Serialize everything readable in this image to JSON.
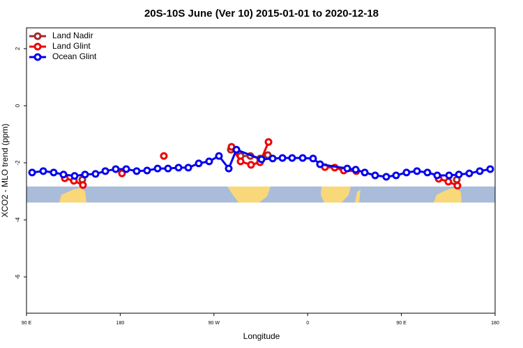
{
  "chart_data": {
    "type": "line",
    "title": "20S-10S June (Ver 10)   2015-01-01 to 2020-12-18",
    "x_label": "Longitude",
    "y_label": "XCO2 - MLO trend (ppm)",
    "xlim": [
      90,
      540
    ],
    "xticks": [
      {
        "value": 90,
        "label": "90 E"
      },
      {
        "value": 180,
        "label": "180"
      },
      {
        "value": 270,
        "label": "90 W"
      },
      {
        "value": 360,
        "label": "0"
      },
      {
        "value": 450,
        "label": "90 E"
      },
      {
        "value": 540,
        "label": "180"
      }
    ],
    "ylim": [
      -7.27,
      2.73
    ],
    "yticks": [
      -6,
      -4,
      -2,
      0,
      2
    ],
    "legend": "top-left",
    "series": [
      {
        "name": "Land Nadir",
        "color": "#a52a2a",
        "x": [
          143.6,
          null,
          286.2,
          295.6,
          305.0,
          314.3,
          321.7,
          null,
          503.2
        ],
        "values": [
          -2.59,
          null,
          -1.54,
          -1.76,
          -1.76,
          -1.85,
          -1.73,
          null,
          -2.59
        ]
      },
      {
        "name": "Land Glint",
        "color": "#ee0000",
        "x": [
          126.8,
          135.5,
          144.2,
          null,
          181.7,
          null,
          221.9,
          null,
          286.9,
          295.6,
          305.6,
          314.3,
          322.4,
          null,
          376.6,
          386.0,
          394.7,
          406.7,
          null,
          485.8,
          495.1,
          503.8
        ],
        "values": [
          -2.54,
          -2.63,
          -2.78,
          null,
          -2.37,
          null,
          -1.76,
          null,
          -1.44,
          -1.95,
          -2.07,
          -1.98,
          -1.27,
          null,
          -2.15,
          -2.17,
          -2.27,
          -2.29,
          null,
          -2.56,
          -2.66,
          -2.8
        ]
      },
      {
        "name": "Ocean Glint",
        "color": "#0000ee",
        "x": [
          95.4,
          106.1,
          116.1,
          125.5,
          136.2,
          146.2,
          156.3,
          165.7,
          175.7,
          185.8,
          195.8,
          205.8,
          215.9,
          225.9,
          236.0,
          245.4,
          255.4,
          265.4,
          274.8,
          284.2,
          291.6,
          315.7,
          326.4,
          335.8,
          345.1,
          355.2,
          365.2,
          371.9,
          398.0,
          406.1,
          414.8,
          424.8,
          435.5,
          444.9,
          454.9,
          465.0,
          475.0,
          484.4,
          495.8,
          505.2,
          515.2,
          525.3,
          535.3
        ],
        "values": [
          -2.34,
          -2.29,
          -2.34,
          -2.41,
          -2.46,
          -2.41,
          -2.39,
          -2.29,
          -2.22,
          -2.22,
          -2.29,
          -2.27,
          -2.2,
          -2.2,
          -2.17,
          -2.17,
          -2.02,
          -1.95,
          -1.76,
          -2.2,
          -1.54,
          -1.88,
          -1.85,
          -1.83,
          -1.83,
          -1.83,
          -1.85,
          -2.05,
          -2.2,
          -2.24,
          -2.34,
          -2.44,
          -2.49,
          -2.44,
          -2.34,
          -2.29,
          -2.34,
          -2.44,
          -2.44,
          -2.41,
          -2.37,
          -2.29,
          -2.22
        ]
      }
    ]
  }
}
